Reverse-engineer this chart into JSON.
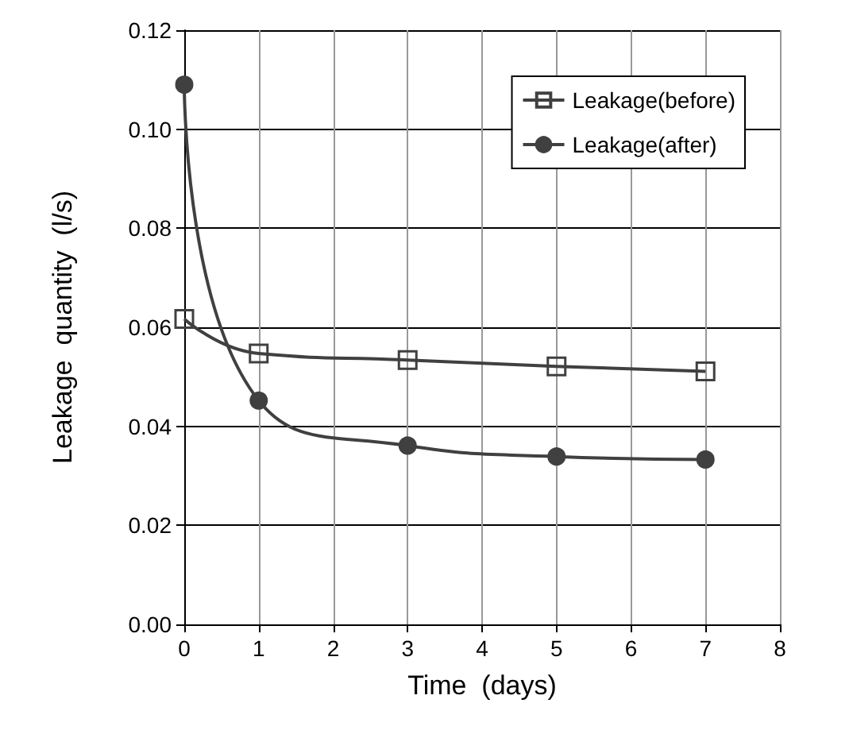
{
  "chart_data": {
    "type": "line",
    "xlabel": "Time  (days)",
    "ylabel": "Leakage  quantity  (l/s)",
    "x": [
      0,
      1,
      3,
      5,
      7
    ],
    "series": [
      {
        "name": "Leakage(before)",
        "color": "#404040",
        "marker": "square",
        "values": [
          0.0617,
          0.0547,
          0.0534,
          0.0521,
          0.0511
        ]
      },
      {
        "name": "Leakage(after)",
        "color": "#404040",
        "marker": "circle",
        "values": [
          0.109,
          0.0452,
          0.0361,
          0.0339,
          0.0333
        ]
      }
    ],
    "xlim": [
      0,
      8
    ],
    "xticks": [
      0,
      1,
      2,
      3,
      4,
      5,
      6,
      7,
      8
    ],
    "ylim": [
      0,
      0.12
    ],
    "yticks": [
      {
        "value": 0,
        "label": "0.00"
      },
      {
        "value": 0.02,
        "label": "0.02"
      },
      {
        "value": 0.04,
        "label": "0.04"
      },
      {
        "value": 0.06,
        "label": "0.06"
      },
      {
        "value": 0.08,
        "label": "0.08"
      },
      {
        "value": 0.1,
        "label": "0.10"
      },
      {
        "value": 0.12,
        "label": "0.12"
      }
    ],
    "grid": true,
    "legend": "top right"
  }
}
